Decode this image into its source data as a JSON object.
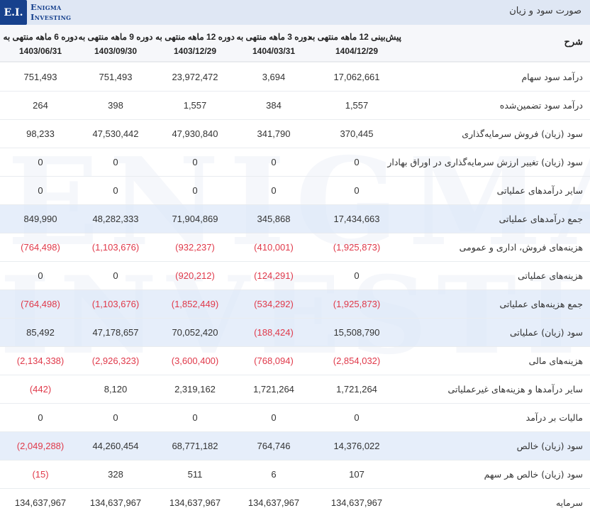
{
  "brand": {
    "mark": "E.I.",
    "line1": "Enigma",
    "line2": "Investing",
    "color": "#17418d"
  },
  "watermark": {
    "line1": "ENIGMA",
    "line2": "INVESTING"
  },
  "title": "صورت سود و زیان",
  "header": {
    "label": "شرح",
    "columns": [
      {
        "title": "پیش‌بینی 12 ماهه منتهی به",
        "date": "1404/12/29"
      },
      {
        "title": "دوره 3 ماهه منتهی به",
        "date": "1404/03/31"
      },
      {
        "title": "دوره 12 ماهه منتهی به",
        "date": "1403/12/29"
      },
      {
        "title": "دوره 9 ماهه منتهی به",
        "date": "1403/09/30"
      },
      {
        "title": "دوره 6 ماهه منتهی به",
        "date": "1403/06/31"
      }
    ]
  },
  "colors": {
    "negative": "#e0394a",
    "highlight_row": "#e2ebf9",
    "title_bar": "#dfe7f4"
  },
  "rows": [
    {
      "label": "درآمد سود سهام",
      "highlight": false,
      "values": [
        "17,062,661",
        "3,694",
        "23,972,472",
        "751,493",
        "751,493"
      ]
    },
    {
      "label": "درآمد سود تضمین‌شده",
      "highlight": false,
      "values": [
        "1,557",
        "384",
        "1,557",
        "398",
        "264"
      ]
    },
    {
      "label": "سود (زیان) فروش سرمایه‌گذاری",
      "highlight": false,
      "values": [
        "370,445",
        "341,790",
        "47,930,840",
        "47,530,442",
        "98,233"
      ]
    },
    {
      "label": "سود (زیان) تغییر ارزش سرمایه‌گذاری در اوراق بهادار",
      "highlight": false,
      "values": [
        "0",
        "0",
        "0",
        "0",
        "0"
      ]
    },
    {
      "label": "سایر درآمدهای عملیاتی",
      "highlight": false,
      "values": [
        "0",
        "0",
        "0",
        "0",
        "0"
      ]
    },
    {
      "label": "جمع درآمدهای عملیاتی",
      "highlight": true,
      "values": [
        "17,434,663",
        "345,868",
        "71,904,869",
        "48,282,333",
        "849,990"
      ]
    },
    {
      "label": "هزینه‌های فروش، اداری و عمومی",
      "highlight": false,
      "values": [
        "(1,925,873)",
        "(410,001)",
        "(932,237)",
        "(1,103,676)",
        "(764,498)"
      ]
    },
    {
      "label": "هزینه‌های عملیاتی",
      "highlight": false,
      "values": [
        "0",
        "(124,291)",
        "(920,212)",
        "0",
        "0"
      ]
    },
    {
      "label": "جمع هزینه‌های عملیاتی",
      "highlight": true,
      "values": [
        "(1,925,873)",
        "(534,292)",
        "(1,852,449)",
        "(1,103,676)",
        "(764,498)"
      ]
    },
    {
      "label": "سود (زیان) عملیاتی",
      "highlight": true,
      "values": [
        "15,508,790",
        "(188,424)",
        "70,052,420",
        "47,178,657",
        "85,492"
      ]
    },
    {
      "label": "هزینه‌های مالی",
      "highlight": false,
      "values": [
        "(2,854,032)",
        "(768,094)",
        "(3,600,400)",
        "(2,926,323)",
        "(2,134,338)"
      ]
    },
    {
      "label": "سایر درآمدها و هزینه‌های غیرعملیاتی",
      "highlight": false,
      "values": [
        "1,721,264",
        "1,721,264",
        "2,319,162",
        "8,120",
        "(442)"
      ]
    },
    {
      "label": "مالیات بر درآمد",
      "highlight": false,
      "values": [
        "0",
        "0",
        "0",
        "0",
        "0"
      ]
    },
    {
      "label": "سود (زیان) خالص",
      "highlight": true,
      "values": [
        "14,376,022",
        "764,746",
        "68,771,182",
        "44,260,454",
        "(2,049,288)"
      ]
    },
    {
      "label": "سود (زیان) خالص هر سهم",
      "highlight": false,
      "values": [
        "107",
        "6",
        "511",
        "328",
        "(15)"
      ]
    },
    {
      "label": "سرمایه",
      "highlight": false,
      "values": [
        "134,637,967",
        "134,637,967",
        "134,637,967",
        "134,637,967",
        "134,637,967"
      ]
    }
  ]
}
